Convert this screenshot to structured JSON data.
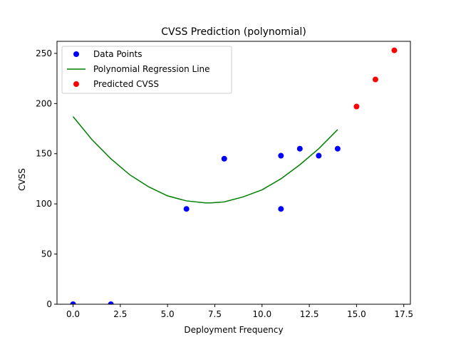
{
  "chart_data": {
    "type": "scatter",
    "title": "CVSS Prediction (polynomial)",
    "xlabel": "Deployment Frequency",
    "ylabel": "CVSS",
    "xlim": [
      -0.85,
      17.85
    ],
    "ylim": [
      0,
      262
    ],
    "x_ticks": [
      0.0,
      2.5,
      5.0,
      7.5,
      10.0,
      12.5,
      15.0,
      17.5
    ],
    "x_tick_labels": [
      "0.0",
      "2.5",
      "5.0",
      "7.5",
      "10.0",
      "12.5",
      "15.0",
      "17.5"
    ],
    "y_ticks": [
      0,
      50,
      100,
      150,
      200,
      250
    ],
    "y_tick_labels": [
      "0",
      "50",
      "100",
      "150",
      "200",
      "250"
    ],
    "grid": false,
    "legend_position": "upper-left",
    "series": [
      {
        "name": "Data Points",
        "kind": "scatter",
        "color": "#0000ff",
        "x": [
          0,
          2,
          6,
          8,
          11,
          11,
          12,
          13,
          14
        ],
        "y": [
          0,
          0,
          95,
          145,
          148,
          95,
          155,
          148,
          155
        ]
      },
      {
        "name": "Polynomial Regression Line",
        "kind": "line",
        "color": "#008000",
        "x": [
          0,
          1,
          2,
          3,
          4,
          5,
          6,
          7,
          7.3,
          8,
          9,
          10,
          11,
          12,
          13,
          14
        ],
        "y": [
          187,
          164,
          145,
          129,
          117,
          108,
          103,
          101,
          101,
          102,
          107,
          114,
          125,
          139,
          155,
          174
        ]
      },
      {
        "name": "Predicted CVSS",
        "kind": "scatter",
        "color": "#ff0000",
        "x": [
          15,
          16,
          17
        ],
        "y": [
          197,
          224,
          253
        ]
      }
    ]
  }
}
